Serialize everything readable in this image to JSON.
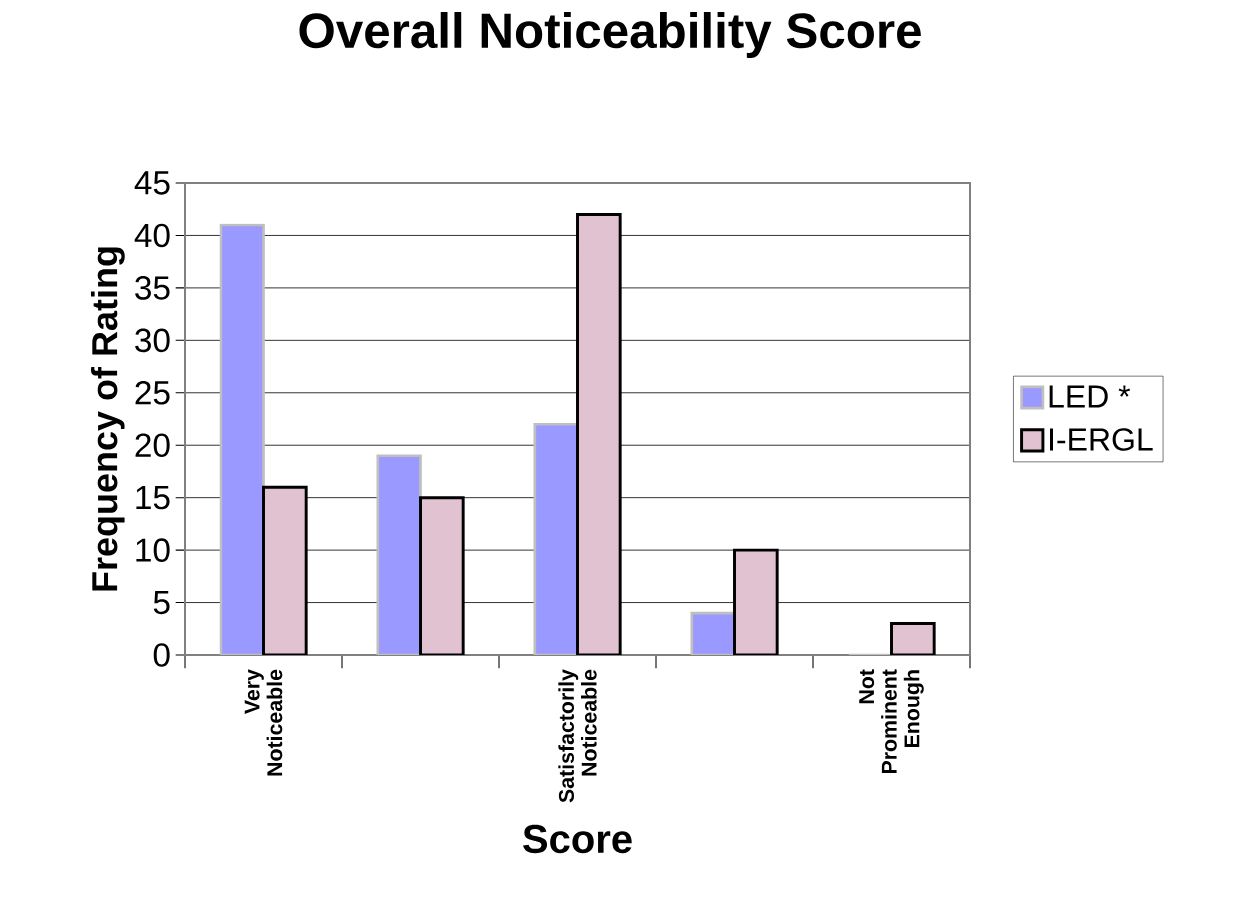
{
  "chart_data": {
    "type": "bar",
    "title": "Overall Noticeability Score",
    "xlabel": "Score",
    "ylabel": "Frequency of Rating",
    "categories": [
      "Very Noticeable",
      null,
      "Satisfactorily Noticeable",
      null,
      "Not Prominent Enough"
    ],
    "series": [
      {
        "name": "LED *",
        "color": "#9999ff",
        "values": [
          41,
          19,
          22,
          4,
          0
        ]
      },
      {
        "name": "I-ERGL",
        "color": "#e0c2d1",
        "values": [
          16,
          15,
          42,
          10,
          3
        ]
      }
    ],
    "ylim": [
      0,
      45
    ],
    "yticks": [
      0,
      5,
      10,
      15,
      20,
      25,
      30,
      35,
      40,
      45
    ],
    "grid": "y",
    "legend": "right"
  }
}
